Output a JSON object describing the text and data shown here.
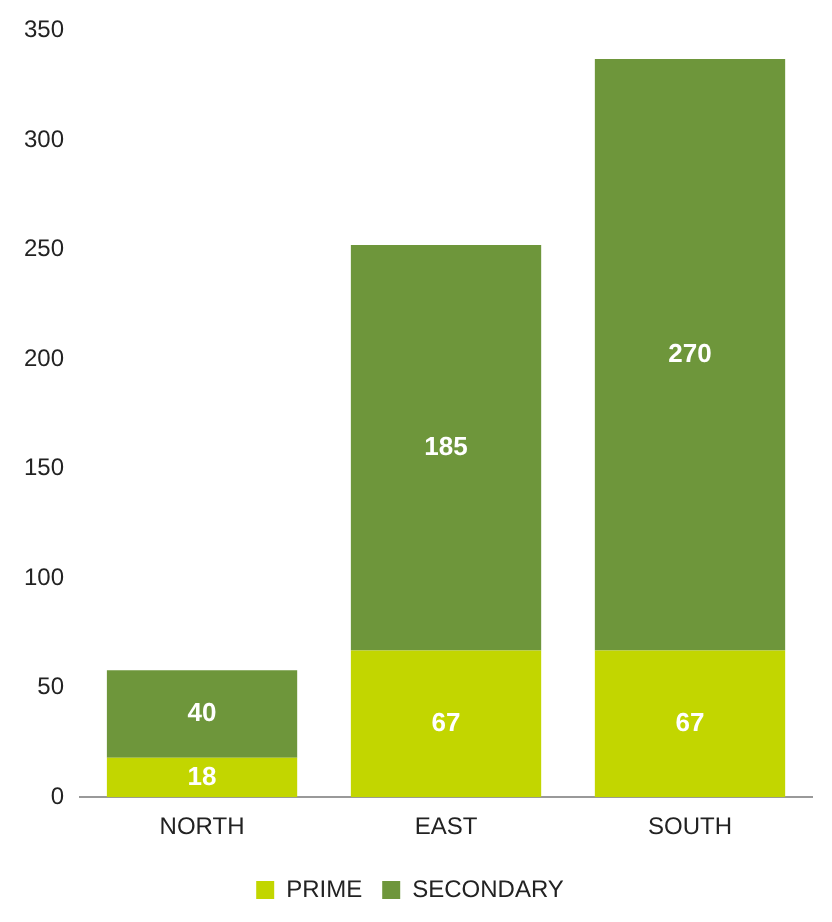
{
  "chart_data": {
    "type": "bar",
    "stacked": true,
    "categories": [
      "NORTH",
      "EAST",
      "SOUTH"
    ],
    "series": [
      {
        "name": "PRIME",
        "color": "#c2d600",
        "values": [
          18,
          67,
          67
        ]
      },
      {
        "name": "SECONDARY",
        "color": "#6e963b",
        "values": [
          40,
          185,
          270
        ]
      }
    ],
    "ylim": [
      0,
      350
    ],
    "yticks": [
      0,
      50,
      100,
      150,
      200,
      250,
      300,
      350
    ],
    "grid": false,
    "legend": "bottom",
    "data_labels": true
  }
}
